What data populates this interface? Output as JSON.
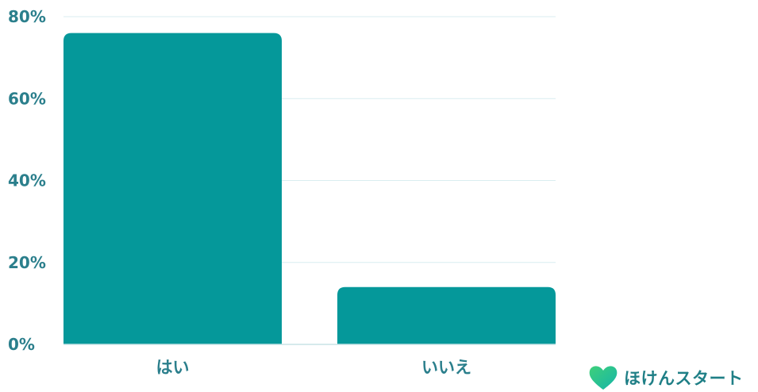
{
  "chart_data": {
    "type": "bar",
    "categories": [
      "はい",
      "いいえ"
    ],
    "values": [
      76,
      14
    ],
    "ylim": [
      0,
      80
    ],
    "yticks": [
      0,
      20,
      40,
      60,
      80
    ],
    "ytick_labels": [
      "0%",
      "20%",
      "40%",
      "60%",
      "80%"
    ],
    "grid": true,
    "bar_color": "#05989a"
  },
  "logo": {
    "text": "ほけんスタート",
    "icon": "heart-icon",
    "colors": [
      "#3fd07a",
      "#15b5a8"
    ]
  }
}
